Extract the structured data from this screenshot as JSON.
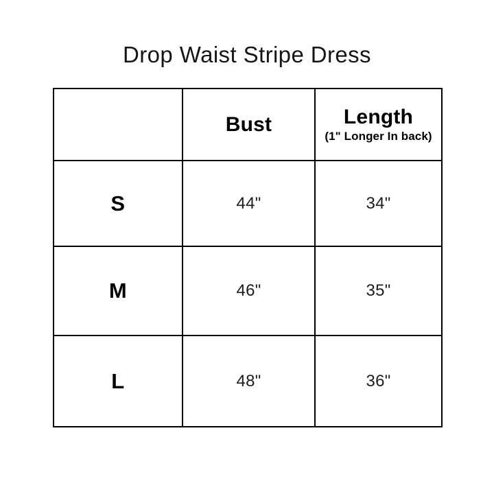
{
  "page": {
    "title": "Drop Waist Stripe Dress"
  },
  "table": {
    "header": {
      "size_label": "",
      "bust_label": "Bust",
      "length_label": "Length",
      "length_note": "(1\" Longer In back)"
    },
    "rows": [
      {
        "size": "S",
        "bust": "44\"",
        "length": "34\""
      },
      {
        "size": "M",
        "bust": "46\"",
        "length": "35\""
      },
      {
        "size": "L",
        "bust": "48\"",
        "length": "36\""
      }
    ]
  },
  "colors": {
    "background": "#ffffff",
    "border": "#000000",
    "heading_text": "#000000",
    "value_text": "#1c1c1c"
  },
  "chart_data": {
    "type": "table",
    "title": "Drop Waist Stripe Dress",
    "columns": [
      "",
      "Bust",
      "Length (1\" Longer In back)"
    ],
    "rows": [
      [
        "S",
        "44\"",
        "34\""
      ],
      [
        "M",
        "46\"",
        "35\""
      ],
      [
        "L",
        "48\"",
        "36\""
      ]
    ]
  }
}
